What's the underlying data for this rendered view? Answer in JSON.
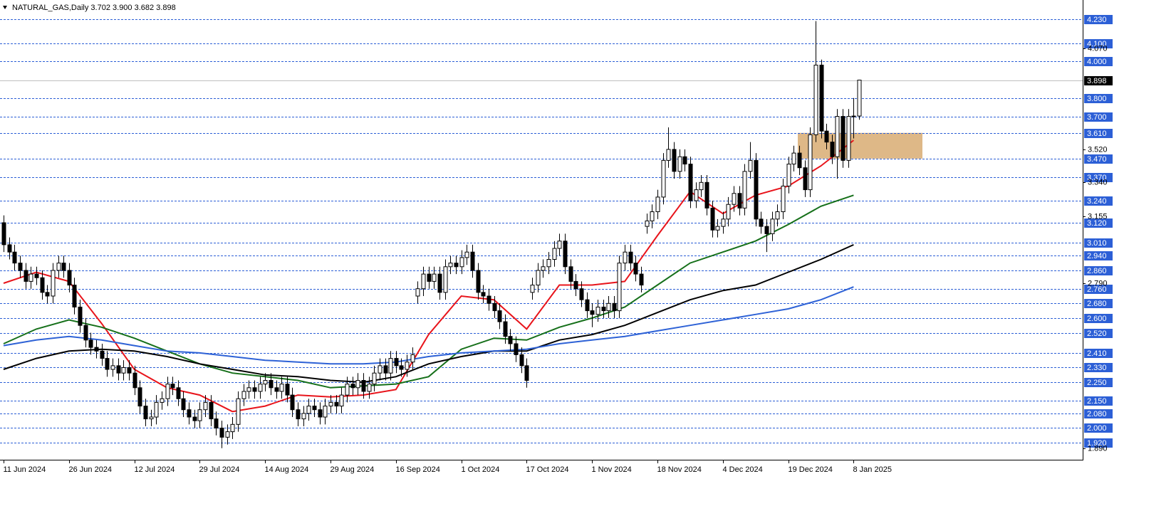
{
  "chart_data": {
    "type": "candlestick",
    "title": "NATURAL_GAS,Daily  3.702 3.900 3.682 3.898",
    "categories": [
      "11 Jun 2024",
      null,
      null,
      null,
      null,
      null,
      null,
      null,
      null,
      null,
      null,
      null,
      "26 Jun 2024",
      null,
      null,
      null,
      null,
      null,
      null,
      null,
      null,
      null,
      null,
      null,
      "12 Jul 2024",
      null,
      null,
      null,
      null,
      null,
      null,
      null,
      null,
      null,
      null,
      null,
      "29 Jul 2024",
      null,
      null,
      null,
      null,
      null,
      null,
      null,
      null,
      null,
      null,
      null,
      "14 Aug 2024",
      null,
      null,
      null,
      null,
      null,
      null,
      null,
      null,
      null,
      null,
      null,
      "29 Aug 2024",
      null,
      null,
      null,
      null,
      null,
      null,
      null,
      null,
      null,
      null,
      null,
      "16 Sep 2024",
      null,
      null,
      null,
      null,
      null,
      null,
      null,
      null,
      null,
      null,
      null,
      "1 Oct 2024",
      null,
      null,
      null,
      null,
      null,
      null,
      null,
      null,
      null,
      null,
      null,
      "17 Oct 2024",
      null,
      null,
      null,
      null,
      null,
      null,
      null,
      null,
      null,
      null,
      null,
      "1 Nov 2024",
      null,
      null,
      null,
      null,
      null,
      null,
      null,
      null,
      null,
      null,
      null,
      "18 Nov 2024",
      null,
      null,
      null,
      null,
      null,
      null,
      null,
      null,
      null,
      null,
      null,
      "4 Dec 2024",
      null,
      null,
      null,
      null,
      null,
      null,
      null,
      null,
      null,
      null,
      null,
      "19 Dec 2024",
      null,
      null,
      null,
      null,
      null,
      null,
      null,
      null,
      null,
      null,
      null,
      "8 Jan 2025",
      null
    ],
    "open": [
      3.12,
      3.0,
      2.96,
      2.9,
      2.86,
      2.8,
      2.84,
      2.82,
      2.74,
      2.72,
      2.86,
      2.9,
      2.86,
      2.78,
      2.66,
      2.56,
      2.48,
      2.44,
      2.42,
      2.38,
      2.32,
      2.34,
      2.3,
      2.33,
      2.3,
      2.22,
      2.12,
      2.05,
      2.06,
      2.14,
      2.16,
      2.24,
      2.22,
      2.16,
      2.1,
      2.06,
      2.04,
      2.1,
      2.14,
      2.05,
      2.0,
      1.95,
      1.98,
      2.02,
      2.16,
      2.2,
      2.22,
      2.2,
      2.24,
      2.26,
      2.22,
      2.2,
      2.24,
      2.18,
      2.1,
      2.05,
      2.08,
      2.12,
      2.1,
      2.06,
      2.12,
      2.14,
      2.12,
      2.18,
      2.24,
      2.22,
      2.26,
      2.2,
      2.24,
      2.3,
      2.34,
      2.3,
      2.38,
      2.34,
      2.32,
      2.36,
      2.72,
      2.76,
      2.84,
      2.8,
      2.84,
      2.74,
      2.88,
      2.9,
      2.88,
      2.93,
      2.96,
      2.86,
      2.74,
      2.72,
      2.68,
      2.64,
      2.58,
      2.5,
      2.46,
      2.4,
      2.34,
      2.74,
      2.78,
      2.86,
      2.88,
      2.92,
      2.98,
      3.02,
      2.88,
      2.8,
      2.76,
      2.7,
      2.64,
      2.62,
      2.66,
      2.64,
      2.68,
      2.64,
      2.9,
      2.96,
      2.9,
      2.84,
      3.1,
      3.13,
      3.18,
      3.26,
      3.46,
      3.52,
      3.4,
      3.48,
      3.44,
      3.24,
      3.3,
      3.34,
      3.2,
      3.08,
      3.1,
      3.14,
      3.22,
      3.28,
      3.2,
      3.4,
      3.46,
      3.14,
      3.1,
      3.06,
      3.14,
      3.18,
      3.32,
      3.44,
      3.5,
      3.42,
      3.3,
      3.6,
      3.98,
      3.62,
      3.56,
      3.48,
      3.7,
      3.46,
      3.7,
      3.702
    ],
    "high": [
      3.16,
      3.04,
      3.0,
      2.94,
      2.9,
      2.88,
      2.88,
      2.86,
      2.78,
      2.9,
      2.94,
      2.94,
      2.9,
      2.82,
      2.7,
      2.6,
      2.52,
      2.48,
      2.46,
      2.42,
      2.38,
      2.38,
      2.37,
      2.37,
      2.34,
      2.26,
      2.16,
      2.1,
      2.18,
      2.2,
      2.28,
      2.28,
      2.26,
      2.2,
      2.14,
      2.1,
      2.14,
      2.18,
      2.18,
      2.09,
      2.04,
      2.02,
      2.06,
      2.2,
      2.24,
      2.26,
      2.26,
      2.28,
      2.3,
      2.3,
      2.26,
      2.28,
      2.28,
      2.22,
      2.14,
      2.12,
      2.16,
      2.16,
      2.14,
      2.16,
      2.18,
      2.18,
      2.22,
      2.28,
      2.28,
      2.3,
      2.3,
      2.28,
      2.34,
      2.38,
      2.38,
      2.42,
      2.42,
      2.38,
      2.4,
      2.44,
      2.8,
      2.88,
      2.88,
      2.88,
      2.88,
      2.92,
      2.94,
      2.94,
      2.97,
      3.0,
      3.0,
      2.9,
      2.78,
      2.76,
      2.72,
      2.68,
      2.62,
      2.54,
      2.5,
      2.44,
      2.38,
      2.82,
      2.9,
      2.92,
      2.96,
      3.02,
      3.06,
      3.06,
      2.92,
      2.84,
      2.8,
      2.74,
      2.68,
      2.7,
      2.7,
      2.72,
      2.72,
      2.94,
      3.0,
      3.0,
      2.94,
      2.88,
      3.17,
      3.22,
      3.3,
      3.5,
      3.64,
      3.56,
      3.52,
      3.52,
      3.48,
      3.34,
      3.38,
      3.38,
      3.24,
      3.14,
      3.18,
      3.26,
      3.32,
      3.32,
      3.44,
      3.56,
      3.5,
      3.18,
      3.14,
      3.18,
      3.22,
      3.36,
      3.48,
      3.54,
      3.54,
      3.46,
      3.64,
      4.22,
      4.01,
      3.66,
      3.6,
      3.74,
      3.74,
      3.74,
      3.8,
      3.9
    ],
    "low": [
      2.96,
      2.92,
      2.86,
      2.82,
      2.76,
      2.76,
      2.78,
      2.7,
      2.68,
      2.68,
      2.82,
      2.82,
      2.74,
      2.62,
      2.52,
      2.44,
      2.4,
      2.38,
      2.34,
      2.28,
      2.28,
      2.26,
      2.26,
      2.26,
      2.18,
      2.08,
      2.01,
      2.01,
      2.02,
      2.1,
      2.12,
      2.18,
      2.12,
      2.06,
      2.02,
      2.0,
      2.0,
      2.06,
      2.01,
      1.96,
      1.89,
      1.91,
      1.94,
      1.98,
      2.12,
      2.16,
      2.16,
      2.16,
      2.2,
      2.18,
      2.16,
      2.16,
      2.14,
      2.06,
      2.01,
      2.01,
      2.04,
      2.06,
      2.02,
      2.02,
      2.08,
      2.08,
      2.08,
      2.14,
      2.18,
      2.18,
      2.16,
      2.16,
      2.2,
      2.26,
      2.26,
      2.26,
      2.3,
      2.28,
      2.28,
      2.32,
      2.68,
      2.72,
      2.76,
      2.76,
      2.7,
      2.7,
      2.84,
      2.84,
      2.84,
      2.89,
      2.82,
      2.7,
      2.68,
      2.64,
      2.6,
      2.54,
      2.46,
      2.42,
      2.36,
      2.3,
      2.22,
      2.7,
      2.74,
      2.82,
      2.84,
      2.88,
      2.94,
      2.84,
      2.76,
      2.72,
      2.66,
      2.6,
      2.55,
      2.58,
      2.6,
      2.6,
      2.6,
      2.6,
      2.86,
      2.86,
      2.8,
      2.74,
      3.06,
      3.09,
      3.14,
      3.22,
      3.42,
      3.36,
      3.36,
      3.4,
      3.2,
      3.2,
      3.26,
      3.16,
      3.04,
      3.04,
      3.06,
      3.1,
      3.18,
      3.16,
      3.16,
      3.36,
      3.1,
      3.06,
      2.96,
      3.02,
      3.1,
      3.14,
      3.28,
      3.4,
      3.38,
      3.26,
      3.26,
      3.56,
      3.58,
      3.52,
      3.44,
      3.36,
      3.42,
      3.42,
      3.58,
      3.682
    ],
    "close": [
      3.0,
      2.96,
      2.9,
      2.86,
      2.8,
      2.84,
      2.82,
      2.74,
      2.72,
      2.86,
      2.9,
      2.86,
      2.78,
      2.66,
      2.56,
      2.48,
      2.44,
      2.42,
      2.38,
      2.32,
      2.34,
      2.3,
      2.33,
      2.3,
      2.22,
      2.12,
      2.05,
      2.06,
      2.14,
      2.16,
      2.24,
      2.22,
      2.16,
      2.1,
      2.06,
      2.04,
      2.1,
      2.14,
      2.05,
      2.0,
      1.95,
      1.98,
      2.02,
      2.16,
      2.2,
      2.22,
      2.2,
      2.24,
      2.26,
      2.22,
      2.2,
      2.24,
      2.18,
      2.1,
      2.05,
      2.08,
      2.12,
      2.1,
      2.06,
      2.12,
      2.14,
      2.12,
      2.18,
      2.24,
      2.22,
      2.26,
      2.2,
      2.24,
      2.3,
      2.34,
      2.3,
      2.38,
      2.34,
      2.32,
      2.36,
      2.4,
      2.76,
      2.84,
      2.8,
      2.84,
      2.74,
      2.88,
      2.9,
      2.88,
      2.93,
      2.96,
      2.86,
      2.74,
      2.72,
      2.68,
      2.64,
      2.58,
      2.5,
      2.46,
      2.4,
      2.34,
      2.26,
      2.78,
      2.86,
      2.88,
      2.92,
      2.98,
      3.02,
      2.88,
      2.8,
      2.76,
      2.7,
      2.64,
      2.62,
      2.66,
      2.64,
      2.68,
      2.64,
      2.9,
      2.96,
      2.9,
      2.84,
      2.78,
      3.13,
      3.18,
      3.26,
      3.46,
      3.52,
      3.4,
      3.48,
      3.44,
      3.24,
      3.3,
      3.34,
      3.2,
      3.08,
      3.1,
      3.14,
      3.22,
      3.28,
      3.2,
      3.4,
      3.46,
      3.14,
      3.1,
      3.06,
      3.14,
      3.18,
      3.32,
      3.44,
      3.5,
      3.42,
      3.3,
      3.6,
      3.98,
      3.62,
      3.56,
      3.48,
      3.7,
      3.46,
      3.7,
      3.702,
      3.898
    ],
    "ma": [
      {
        "color": "#e8141b",
        "x": [
          0,
          6,
          12,
          18,
          24,
          30,
          36,
          42,
          48,
          54,
          60,
          66,
          72,
          78,
          84,
          90,
          96,
          102,
          108,
          114,
          120,
          126,
          132,
          138,
          144,
          150,
          156
        ],
        "values": [
          2.79,
          2.85,
          2.8,
          2.57,
          2.32,
          2.22,
          2.18,
          2.09,
          2.12,
          2.18,
          2.17,
          2.18,
          2.21,
          2.51,
          2.72,
          2.7,
          2.54,
          2.78,
          2.78,
          2.8,
          3.05,
          3.29,
          3.17,
          3.27,
          3.32,
          3.43,
          3.57
        ]
      },
      {
        "color": "#16701a",
        "x": [
          0,
          6,
          12,
          18,
          24,
          30,
          36,
          42,
          48,
          54,
          60,
          66,
          72,
          78,
          84,
          90,
          96,
          102,
          108,
          114,
          120,
          126,
          132,
          138,
          144,
          150,
          156
        ],
        "values": [
          2.46,
          2.54,
          2.59,
          2.55,
          2.49,
          2.42,
          2.35,
          2.3,
          2.28,
          2.26,
          2.22,
          2.23,
          2.24,
          2.28,
          2.43,
          2.49,
          2.48,
          2.55,
          2.6,
          2.66,
          2.78,
          2.9,
          2.96,
          3.02,
          3.11,
          3.21,
          3.27
        ]
      },
      {
        "color": "#000000",
        "x": [
          0,
          6,
          12,
          18,
          24,
          30,
          36,
          42,
          48,
          54,
          60,
          66,
          72,
          78,
          84,
          90,
          96,
          102,
          108,
          114,
          120,
          126,
          132,
          138,
          144,
          150,
          156
        ],
        "values": [
          2.32,
          2.38,
          2.42,
          2.43,
          2.42,
          2.39,
          2.35,
          2.32,
          2.29,
          2.28,
          2.26,
          2.25,
          2.28,
          2.35,
          2.39,
          2.42,
          2.42,
          2.48,
          2.51,
          2.56,
          2.63,
          2.7,
          2.75,
          2.78,
          2.85,
          2.92,
          3.0
        ]
      },
      {
        "color": "#2e62d6",
        "x": [
          0,
          6,
          12,
          18,
          24,
          30,
          36,
          42,
          48,
          54,
          60,
          66,
          72,
          78,
          84,
          90,
          96,
          102,
          108,
          114,
          120,
          126,
          132,
          138,
          144,
          150,
          156
        ],
        "values": [
          2.45,
          2.48,
          2.5,
          2.48,
          2.45,
          2.42,
          2.41,
          2.39,
          2.37,
          2.36,
          2.35,
          2.35,
          2.36,
          2.39,
          2.41,
          2.42,
          2.43,
          2.46,
          2.48,
          2.5,
          2.53,
          2.56,
          2.59,
          2.62,
          2.65,
          2.7,
          2.77
        ]
      }
    ],
    "ylim": [
      1.831,
      4.335
    ],
    "yticks": [
      {
        "value": 4.07,
        "label": "4.070"
      },
      {
        "value": 3.52,
        "label": "3.520"
      },
      {
        "value": 3.34,
        "label": "3.340"
      },
      {
        "value": 3.155,
        "label": "3.155"
      },
      {
        "value": 2.79,
        "label": "2.790"
      },
      {
        "value": 1.89,
        "label": "1.890"
      }
    ],
    "levels": [
      {
        "value": 4.23,
        "label": "4.230"
      },
      {
        "value": 4.1,
        "label": "4.100"
      },
      {
        "value": 4,
        "label": "4.000"
      },
      {
        "value": 3.8,
        "label": "3.800"
      },
      {
        "value": 3.7,
        "label": "3.700"
      },
      {
        "value": 3.61,
        "label": "3.610"
      },
      {
        "value": 3.47,
        "label": "3.470"
      },
      {
        "value": 3.37,
        "label": "3.370"
      },
      {
        "value": 3.24,
        "label": "3.240"
      },
      {
        "value": 3.12,
        "label": "3.120"
      },
      {
        "value": 3.01,
        "label": "3.010"
      },
      {
        "value": 2.94,
        "label": "2.940"
      },
      {
        "value": 2.86,
        "label": "2.860"
      },
      {
        "value": 2.76,
        "label": "2.760"
      },
      {
        "value": 2.68,
        "label": "2.680"
      },
      {
        "value": 2.6,
        "label": "2.600"
      },
      {
        "value": 2.52,
        "label": "2.520"
      },
      {
        "value": 2.41,
        "label": "2.410"
      },
      {
        "value": 2.33,
        "label": "2.330"
      },
      {
        "value": 2.25,
        "label": "2.250"
      },
      {
        "value": 2.15,
        "label": "2.150"
      },
      {
        "value": 2.08,
        "label": "2.080"
      },
      {
        "value": 2,
        "label": "2.000"
      },
      {
        "value": 1.92,
        "label": "1.920"
      }
    ],
    "level_color": "#2c5fd6",
    "price_tag": {
      "value": 3.898,
      "label": "3.898"
    },
    "zone": {
      "ylim": [
        3.47,
        3.61
      ],
      "color": "#deb887"
    },
    "bull_color": "#ffffff",
    "bear_color": "#000000"
  }
}
